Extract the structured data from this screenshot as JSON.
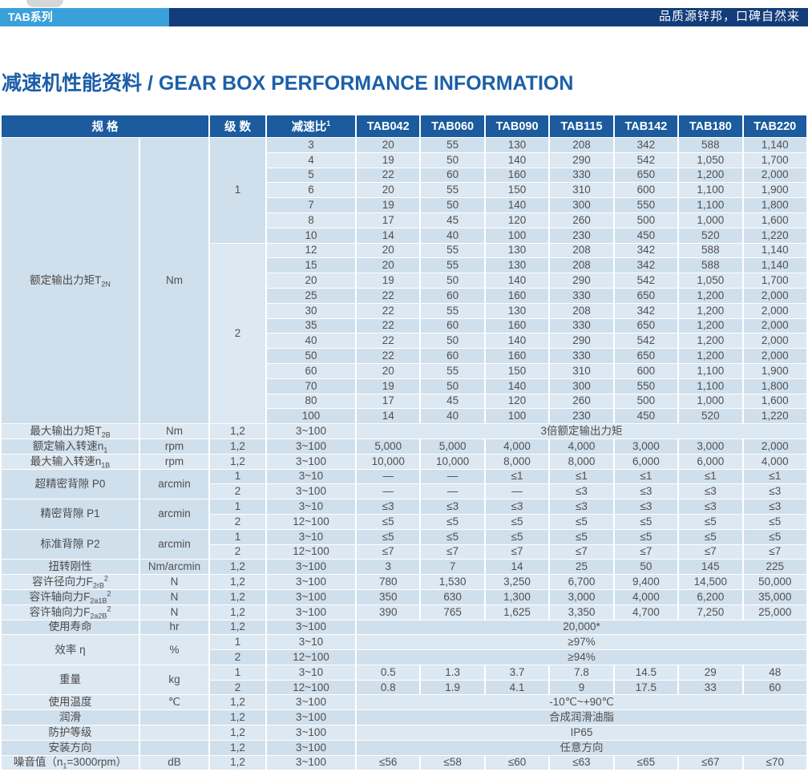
{
  "banner": {
    "series": "TAB系列",
    "slogan": "品质源锌邦，口碑自然来"
  },
  "title": "减速机性能资料 / GEAR BOX PERFORMANCE INFORMATION",
  "colors": {
    "banner_navy": "#133c7a",
    "series_tab_blue": "#3aa0d9",
    "table_header_blue": "#1b5b9e",
    "title_blue": "#1c5fa8",
    "row_shade_dark": "#cfdfec",
    "row_shade_light": "#dce8f2",
    "red_divider": "#e0383f"
  },
  "table": {
    "headers": {
      "spec": "规 格",
      "stage": "级 数",
      "ratio": "减速比^1^",
      "models": [
        "TAB042",
        "TAB060",
        "TAB090",
        "TAB115",
        "TAB142",
        "TAB180",
        "TAB220"
      ]
    },
    "groups": [
      {
        "label": "额定输出力矩T~2N~",
        "unit": "Nm",
        "red_after_first_stage": true,
        "stages": [
          {
            "stage": "1",
            "rows": [
              {
                "ratio": "3",
                "values": [
                  "20",
                  "55",
                  "130",
                  "208",
                  "342",
                  "588",
                  "1,140"
                ]
              },
              {
                "ratio": "4",
                "values": [
                  "19",
                  "50",
                  "140",
                  "290",
                  "542",
                  "1,050",
                  "1,700"
                ]
              },
              {
                "ratio": "5",
                "values": [
                  "22",
                  "60",
                  "160",
                  "330",
                  "650",
                  "1,200",
                  "2,000"
                ]
              },
              {
                "ratio": "6",
                "values": [
                  "20",
                  "55",
                  "150",
                  "310",
                  "600",
                  "1,100",
                  "1,900"
                ]
              },
              {
                "ratio": "7",
                "values": [
                  "19",
                  "50",
                  "140",
                  "300",
                  "550",
                  "1,100",
                  "1,800"
                ]
              },
              {
                "ratio": "8",
                "values": [
                  "17",
                  "45",
                  "120",
                  "260",
                  "500",
                  "1,000",
                  "1,600"
                ]
              },
              {
                "ratio": "10",
                "values": [
                  "14",
                  "40",
                  "100",
                  "230",
                  "450",
                  "520",
                  "1,220"
                ]
              }
            ]
          },
          {
            "stage": "2",
            "rows": [
              {
                "ratio": "12",
                "values": [
                  "20",
                  "55",
                  "130",
                  "208",
                  "342",
                  "588",
                  "1,140"
                ]
              },
              {
                "ratio": "15",
                "values": [
                  "20",
                  "55",
                  "130",
                  "208",
                  "342",
                  "588",
                  "1,140"
                ]
              },
              {
                "ratio": "20",
                "values": [
                  "19",
                  "50",
                  "140",
                  "290",
                  "542",
                  "1,050",
                  "1,700"
                ]
              },
              {
                "ratio": "25",
                "values": [
                  "22",
                  "60",
                  "160",
                  "330",
                  "650",
                  "1,200",
                  "2,000"
                ]
              },
              {
                "ratio": "30",
                "values": [
                  "22",
                  "55",
                  "130",
                  "208",
                  "342",
                  "1,200",
                  "2,000"
                ]
              },
              {
                "ratio": "35",
                "values": [
                  "22",
                  "60",
                  "160",
                  "330",
                  "650",
                  "1,200",
                  "2,000"
                ]
              },
              {
                "ratio": "40",
                "values": [
                  "22",
                  "50",
                  "140",
                  "290",
                  "542",
                  "1,200",
                  "2,000"
                ]
              },
              {
                "ratio": "50",
                "values": [
                  "22",
                  "60",
                  "160",
                  "330",
                  "650",
                  "1,200",
                  "2,000"
                ]
              },
              {
                "ratio": "60",
                "values": [
                  "20",
                  "55",
                  "150",
                  "310",
                  "600",
                  "1,100",
                  "1,900"
                ]
              },
              {
                "ratio": "70",
                "values": [
                  "19",
                  "50",
                  "140",
                  "300",
                  "550",
                  "1,100",
                  "1,800"
                ]
              },
              {
                "ratio": "80",
                "values": [
                  "17",
                  "45",
                  "120",
                  "260",
                  "500",
                  "1,000",
                  "1,600"
                ]
              },
              {
                "ratio": "100",
                "values": [
                  "14",
                  "40",
                  "100",
                  "230",
                  "450",
                  "520",
                  "1,220"
                ]
              }
            ]
          }
        ]
      },
      {
        "label": "最大输出力矩T~2B~",
        "unit": "Nm",
        "stages": [
          {
            "stage": "1,2",
            "rows": [
              {
                "ratio": "3~100",
                "span": "3倍额定输出力矩"
              }
            ]
          }
        ]
      },
      {
        "label": "额定输入转速n~1~",
        "unit": "rpm",
        "stages": [
          {
            "stage": "1,2",
            "rows": [
              {
                "ratio": "3~100",
                "values": [
                  "5,000",
                  "5,000",
                  "4,000",
                  "4,000",
                  "3,000",
                  "3,000",
                  "2,000"
                ]
              }
            ]
          }
        ]
      },
      {
        "label": "最大输入转速n~1B~",
        "unit": "rpm",
        "stages": [
          {
            "stage": "1,2",
            "rows": [
              {
                "ratio": "3~100",
                "values": [
                  "10,000",
                  "10,000",
                  "8,000",
                  "8,000",
                  "6,000",
                  "6,000",
                  "4,000"
                ]
              }
            ]
          }
        ]
      },
      {
        "label": "超精密背隙 P0",
        "unit": "arcmin",
        "stages": [
          {
            "stage": "1",
            "rows": [
              {
                "ratio": "3~10",
                "values": [
                  "—",
                  "—",
                  "≤1",
                  "≤1",
                  "≤1",
                  "≤1",
                  "≤1"
                ]
              }
            ]
          },
          {
            "stage": "2",
            "rows": [
              {
                "ratio": "3~100",
                "values": [
                  "—",
                  "—",
                  "—",
                  "≤3",
                  "≤3",
                  "≤3",
                  "≤3"
                ]
              }
            ]
          }
        ]
      },
      {
        "label": "精密背隙 P1",
        "unit": "arcmin",
        "stages": [
          {
            "stage": "1",
            "rows": [
              {
                "ratio": "3~10",
                "values": [
                  "≤3",
                  "≤3",
                  "≤3",
                  "≤3",
                  "≤3",
                  "≤3",
                  "≤3"
                ]
              }
            ]
          },
          {
            "stage": "2",
            "rows": [
              {
                "ratio": "12~100",
                "values": [
                  "≤5",
                  "≤5",
                  "≤5",
                  "≤5",
                  "≤5",
                  "≤5",
                  "≤5"
                ]
              }
            ]
          }
        ]
      },
      {
        "label": "标准背隙 P2",
        "unit": "arcmin",
        "stages": [
          {
            "stage": "1",
            "rows": [
              {
                "ratio": "3~10",
                "values": [
                  "≤5",
                  "≤5",
                  "≤5",
                  "≤5",
                  "≤5",
                  "≤5",
                  "≤5"
                ]
              }
            ]
          },
          {
            "stage": "2",
            "rows": [
              {
                "ratio": "12~100",
                "values": [
                  "≤7",
                  "≤7",
                  "≤7",
                  "≤7",
                  "≤7",
                  "≤7",
                  "≤7"
                ]
              }
            ]
          }
        ]
      },
      {
        "label": "扭转刚性",
        "unit": "Nm/arcmin",
        "stages": [
          {
            "stage": "1,2",
            "rows": [
              {
                "ratio": "3~100",
                "values": [
                  "3",
                  "7",
                  "14",
                  "25",
                  "50",
                  "145",
                  "225"
                ]
              }
            ]
          }
        ]
      },
      {
        "label": "容许径向力F~2rB~^2^",
        "unit": "N",
        "stages": [
          {
            "stage": "1,2",
            "rows": [
              {
                "ratio": "3~100",
                "values": [
                  "780",
                  "1,530",
                  "3,250",
                  "6,700",
                  "9,400",
                  "14,500",
                  "50,000"
                ]
              }
            ]
          }
        ]
      },
      {
        "label": "容许轴向力F~2a1B~^2^",
        "unit": "N",
        "stages": [
          {
            "stage": "1,2",
            "rows": [
              {
                "ratio": "3~100",
                "values": [
                  "350",
                  "630",
                  "1,300",
                  "3,000",
                  "4,000",
                  "6,200",
                  "35,000"
                ]
              }
            ]
          }
        ]
      },
      {
        "label": "容许轴向力F~2a2B~^2^",
        "unit": "N",
        "stages": [
          {
            "stage": "1,2",
            "rows": [
              {
                "ratio": "3~100",
                "values": [
                  "390",
                  "765",
                  "1,625",
                  "3,350",
                  "4,700",
                  "7,250",
                  "25,000"
                ]
              }
            ]
          }
        ]
      },
      {
        "label": "使用寿命",
        "unit": "hr",
        "stages": [
          {
            "stage": "1,2",
            "rows": [
              {
                "ratio": "3~100",
                "span": "20,000*"
              }
            ]
          }
        ]
      },
      {
        "label": "效率 η",
        "unit": "%",
        "stages": [
          {
            "stage": "1",
            "rows": [
              {
                "ratio": "3~10",
                "span": "≥97%"
              }
            ]
          },
          {
            "stage": "2",
            "rows": [
              {
                "ratio": "12~100",
                "span": "≥94%"
              }
            ]
          }
        ]
      },
      {
        "label": "重量",
        "unit": "kg",
        "stages": [
          {
            "stage": "1",
            "rows": [
              {
                "ratio": "3~10",
                "values": [
                  "0.5",
                  "1.3",
                  "3.7",
                  "7.8",
                  "14.5",
                  "29",
                  "48"
                ]
              }
            ]
          },
          {
            "stage": "2",
            "rows": [
              {
                "ratio": "12~100",
                "values": [
                  "0.8",
                  "1.9",
                  "4.1",
                  "9",
                  "17.5",
                  "33",
                  "60"
                ]
              }
            ]
          }
        ]
      },
      {
        "label": "使用温度",
        "unit": "℃",
        "stages": [
          {
            "stage": "1,2",
            "rows": [
              {
                "ratio": "3~100",
                "span": "-10℃~+90℃"
              }
            ]
          }
        ]
      },
      {
        "label": "润滑",
        "unit": "",
        "stages": [
          {
            "stage": "1,2",
            "rows": [
              {
                "ratio": "3~100",
                "span": "合成润滑油脂"
              }
            ]
          }
        ]
      },
      {
        "label": "防护等级",
        "unit": "",
        "stages": [
          {
            "stage": "1,2",
            "rows": [
              {
                "ratio": "3~100",
                "span": "IP65"
              }
            ]
          }
        ]
      },
      {
        "label": "安装方向",
        "unit": "",
        "stages": [
          {
            "stage": "1,2",
            "rows": [
              {
                "ratio": "3~100",
                "span": "任意方向"
              }
            ]
          }
        ]
      },
      {
        "label": "噪音值（n~1~=3000rpm）",
        "unit": "dB",
        "stages": [
          {
            "stage": "1,2",
            "rows": [
              {
                "ratio": "3~100",
                "values": [
                  "≤56",
                  "≤58",
                  "≤60",
                  "≤63",
                  "≤65",
                  "≤67",
                  "≤70"
                ]
              }
            ]
          }
        ]
      }
    ]
  }
}
